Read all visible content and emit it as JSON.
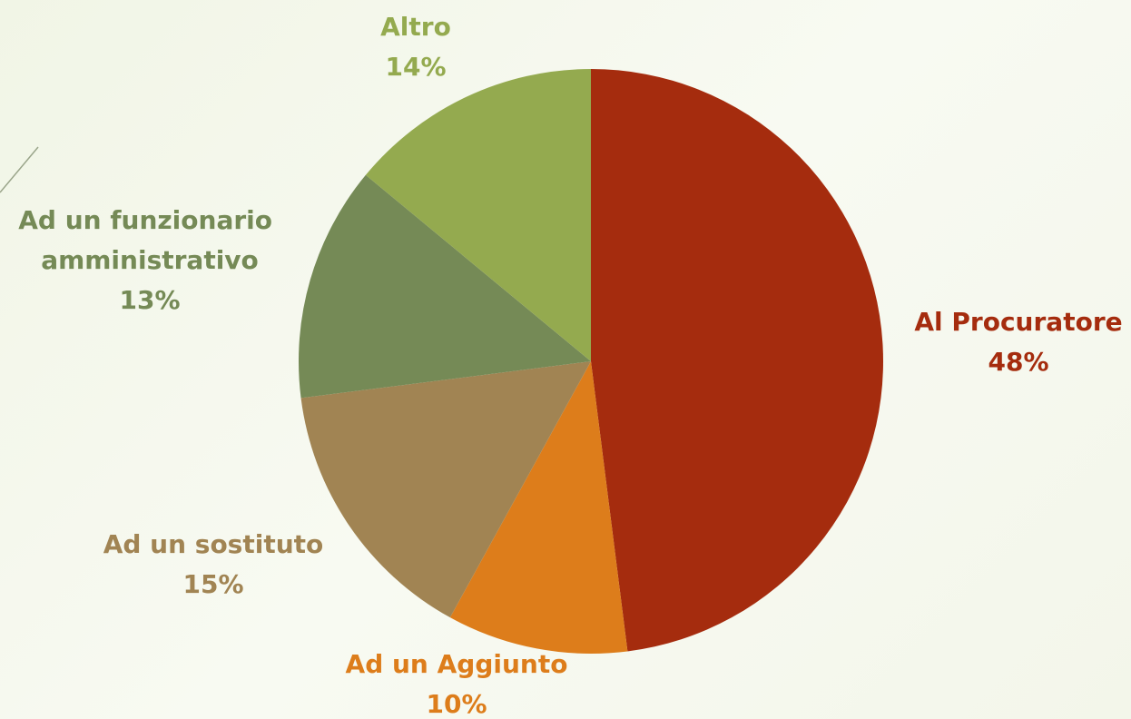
{
  "chart_data": {
    "type": "pie",
    "categories": [
      "Al Procuratore",
      "Ad un Aggiunto",
      "Ad un sostituto",
      "Ad un funzionario amministrativo",
      "Altro"
    ],
    "values": [
      48,
      10,
      15,
      13,
      14
    ],
    "value_labels": [
      "48%",
      "10%",
      "15%",
      "13%",
      "14%"
    ],
    "colors": [
      "#a52c0e",
      "#dd7d1b",
      "#a18453",
      "#758a56",
      "#94aa4f"
    ]
  }
}
